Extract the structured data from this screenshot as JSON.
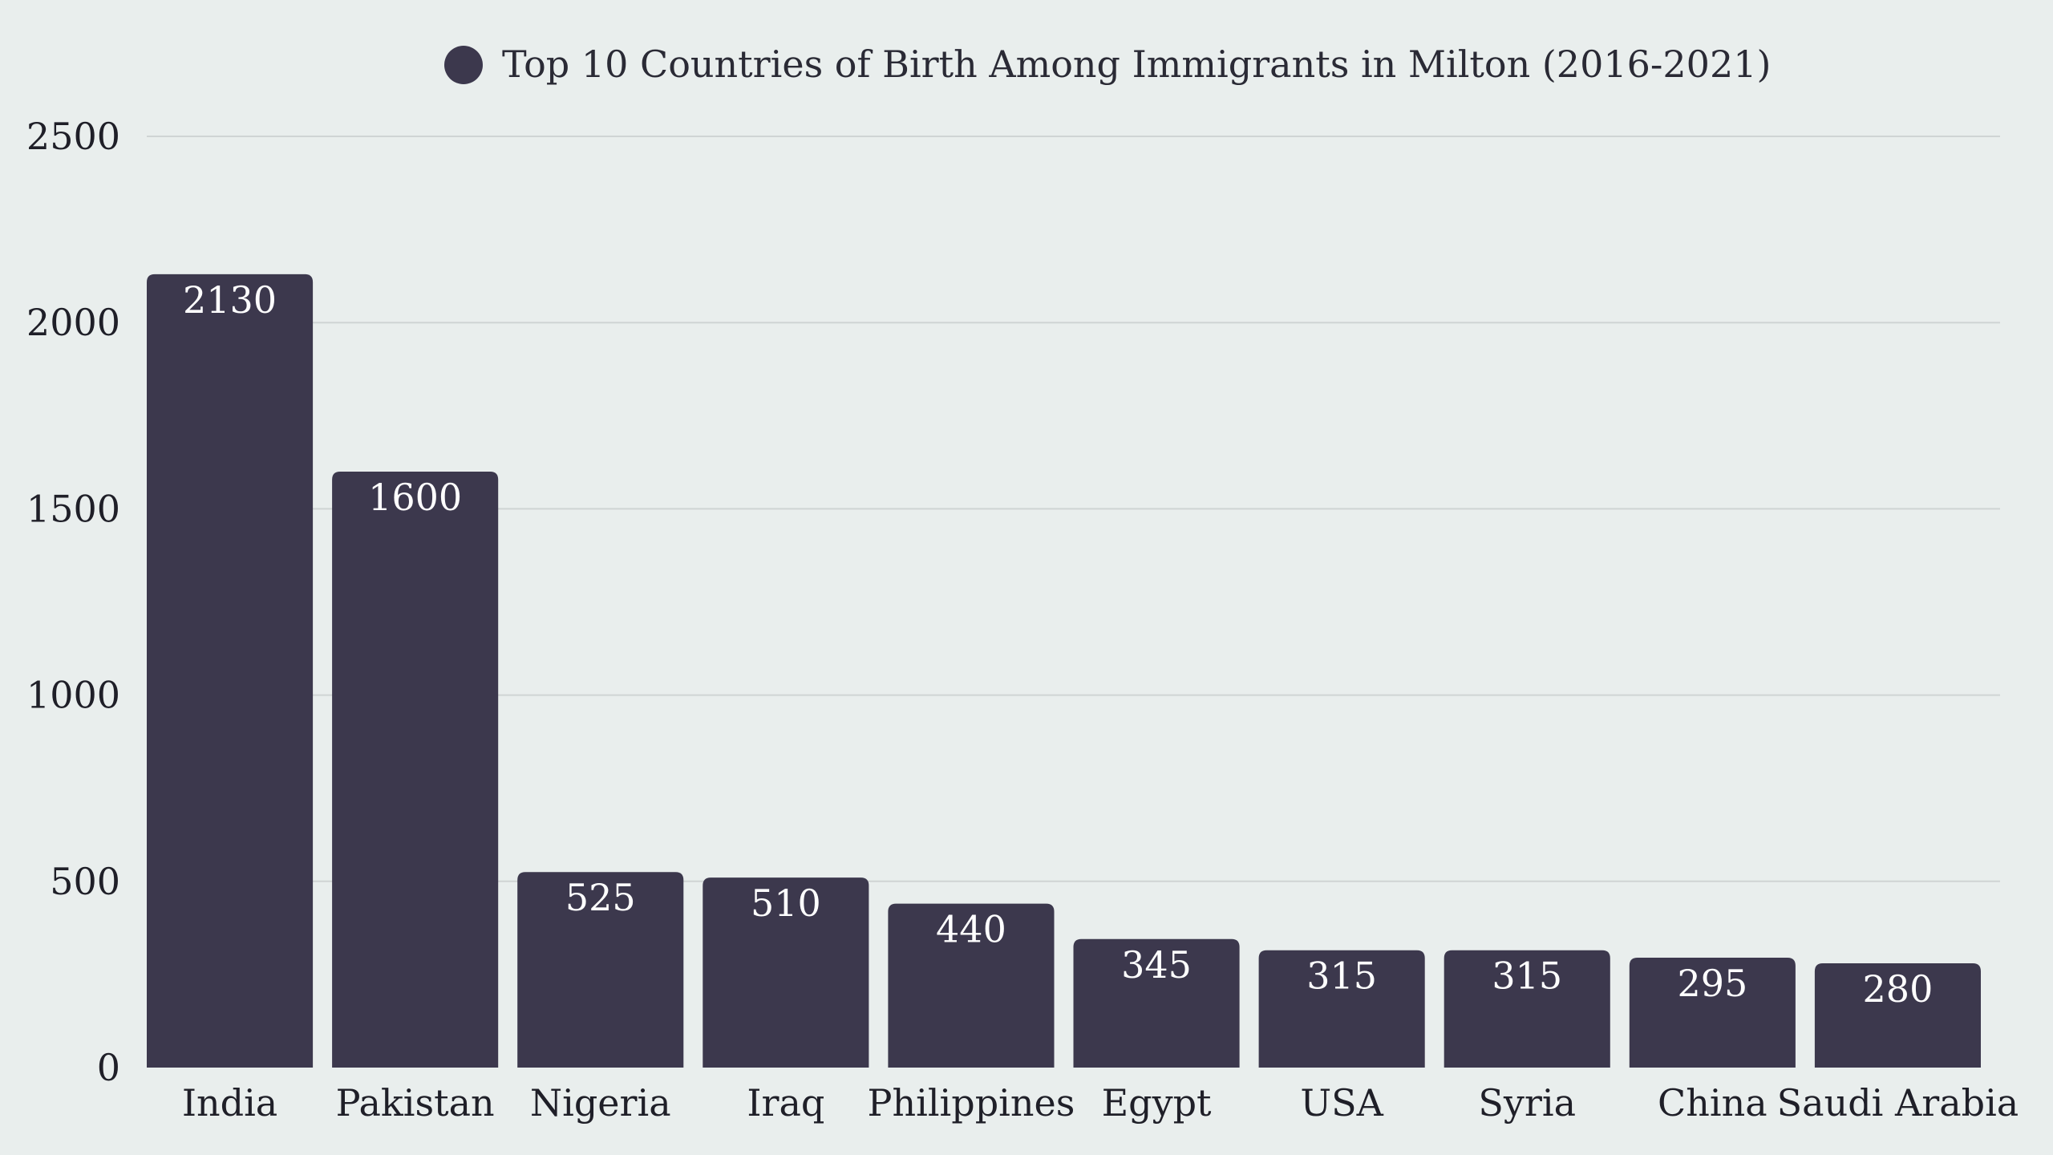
{
  "chart_data": {
    "type": "bar",
    "legend": {
      "label": "Top 10 Countries of Birth Among Immigrants in Milton (2016-2021)",
      "placement": "top-center"
    },
    "categories": [
      "India",
      "Pakistan",
      "Nigeria",
      "Iraq",
      "Philippines",
      "Egypt",
      "USA",
      "Syria",
      "China",
      "Saudi Arabia"
    ],
    "values": [
      2130,
      1600,
      525,
      510,
      440,
      345,
      315,
      315,
      295,
      280
    ],
    "value_labels": [
      "2130",
      "1600",
      "525",
      "510",
      "440",
      "345",
      "315",
      "315",
      "295",
      "280"
    ],
    "ylim": [
      0,
      2500
    ],
    "yticks": [
      0,
      500,
      1000,
      1500,
      2000,
      2500
    ],
    "ytick_labels": [
      "0",
      "500",
      "1000",
      "1500",
      "2000",
      "2500"
    ],
    "grid": true,
    "bar_color": "#3c384d"
  }
}
